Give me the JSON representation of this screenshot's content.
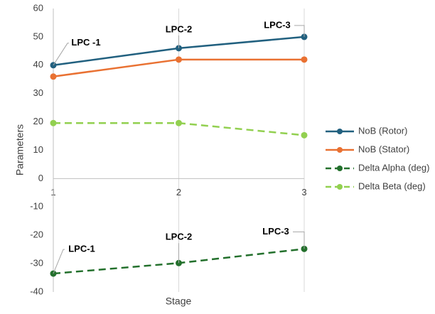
{
  "chart_data": {
    "type": "line",
    "x": [
      1,
      2,
      3
    ],
    "xlim": [
      1,
      3
    ],
    "xticks": [
      1,
      2,
      3
    ],
    "ylim": [
      -40,
      60
    ],
    "yticks": [
      -40,
      -30,
      -20,
      -10,
      0,
      10,
      20,
      30,
      40,
      50,
      60
    ],
    "xlabel": "Stage",
    "ylabel": "Parameters",
    "grid": true,
    "legend": "right",
    "series": [
      {
        "name": "NoB (Rotor)",
        "color": "#21607f",
        "dash": false,
        "values": [
          40,
          46,
          50
        ],
        "annotations": [
          "LPC -1",
          "LPC-2",
          "LPC-3"
        ]
      },
      {
        "name": "NoB (Stator)",
        "color": "#e97132",
        "dash": false,
        "values": [
          36,
          42,
          42
        ]
      },
      {
        "name": "Delta Alpha (deg)",
        "color": "#23702c",
        "dash": true,
        "values": [
          -33.5,
          -29.8,
          -24.8
        ],
        "annotations": [
          "LPC-1",
          "LPC-2",
          "LPC-3"
        ]
      },
      {
        "name": "Delta Beta (deg)",
        "color": "#92d050",
        "dash": true,
        "values": [
          19.6,
          19.6,
          15.3
        ]
      }
    ]
  }
}
